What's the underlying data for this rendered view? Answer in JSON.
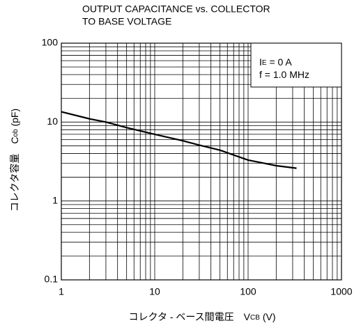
{
  "chart_data": {
    "type": "line",
    "title": [
      "OUTPUT CAPACITANCE vs. COLLECTOR",
      "TO BASE VOLTAGE"
    ],
    "xlabel": {
      "text": "コレクタ - ベース間電圧　V",
      "sub": "CB",
      "unit": " (V)"
    },
    "ylabel": {
      "text": "コレクタ容量　C",
      "sub": "ob",
      "unit": " (pF)"
    },
    "annotations": [
      {
        "text": "I",
        "sub": "E",
        "rest": " = 0 A"
      },
      {
        "text": "f = 1.0 MHz"
      }
    ],
    "log_x": true,
    "log_y": true,
    "grid": true,
    "xlim": [
      1,
      1000
    ],
    "ylim": [
      0.1,
      100
    ],
    "xticks": [
      1,
      10,
      100,
      1000
    ],
    "yticks": [
      0.1,
      1,
      10,
      100
    ],
    "xminorticks": [
      2,
      3,
      4,
      5,
      6,
      7,
      8,
      9,
      20,
      30,
      40,
      50,
      60,
      70,
      80,
      90,
      200,
      300,
      400,
      500,
      600,
      700,
      800,
      900
    ],
    "yminorticks": [
      0.2,
      0.3,
      0.4,
      0.5,
      0.6,
      0.7,
      0.8,
      0.9,
      2,
      3,
      4,
      5,
      6,
      7,
      8,
      9,
      20,
      30,
      40,
      50,
      60,
      70,
      80,
      90
    ],
    "series": [
      {
        "color": "#000000",
        "x": [
          1,
          2,
          3,
          5,
          10,
          20,
          30,
          50,
          100,
          150,
          200,
          330
        ],
        "values": [
          13.5,
          11,
          10,
          8.5,
          7,
          5.8,
          5.1,
          4.4,
          3.3,
          3.0,
          2.8,
          2.6
        ]
      }
    ]
  }
}
